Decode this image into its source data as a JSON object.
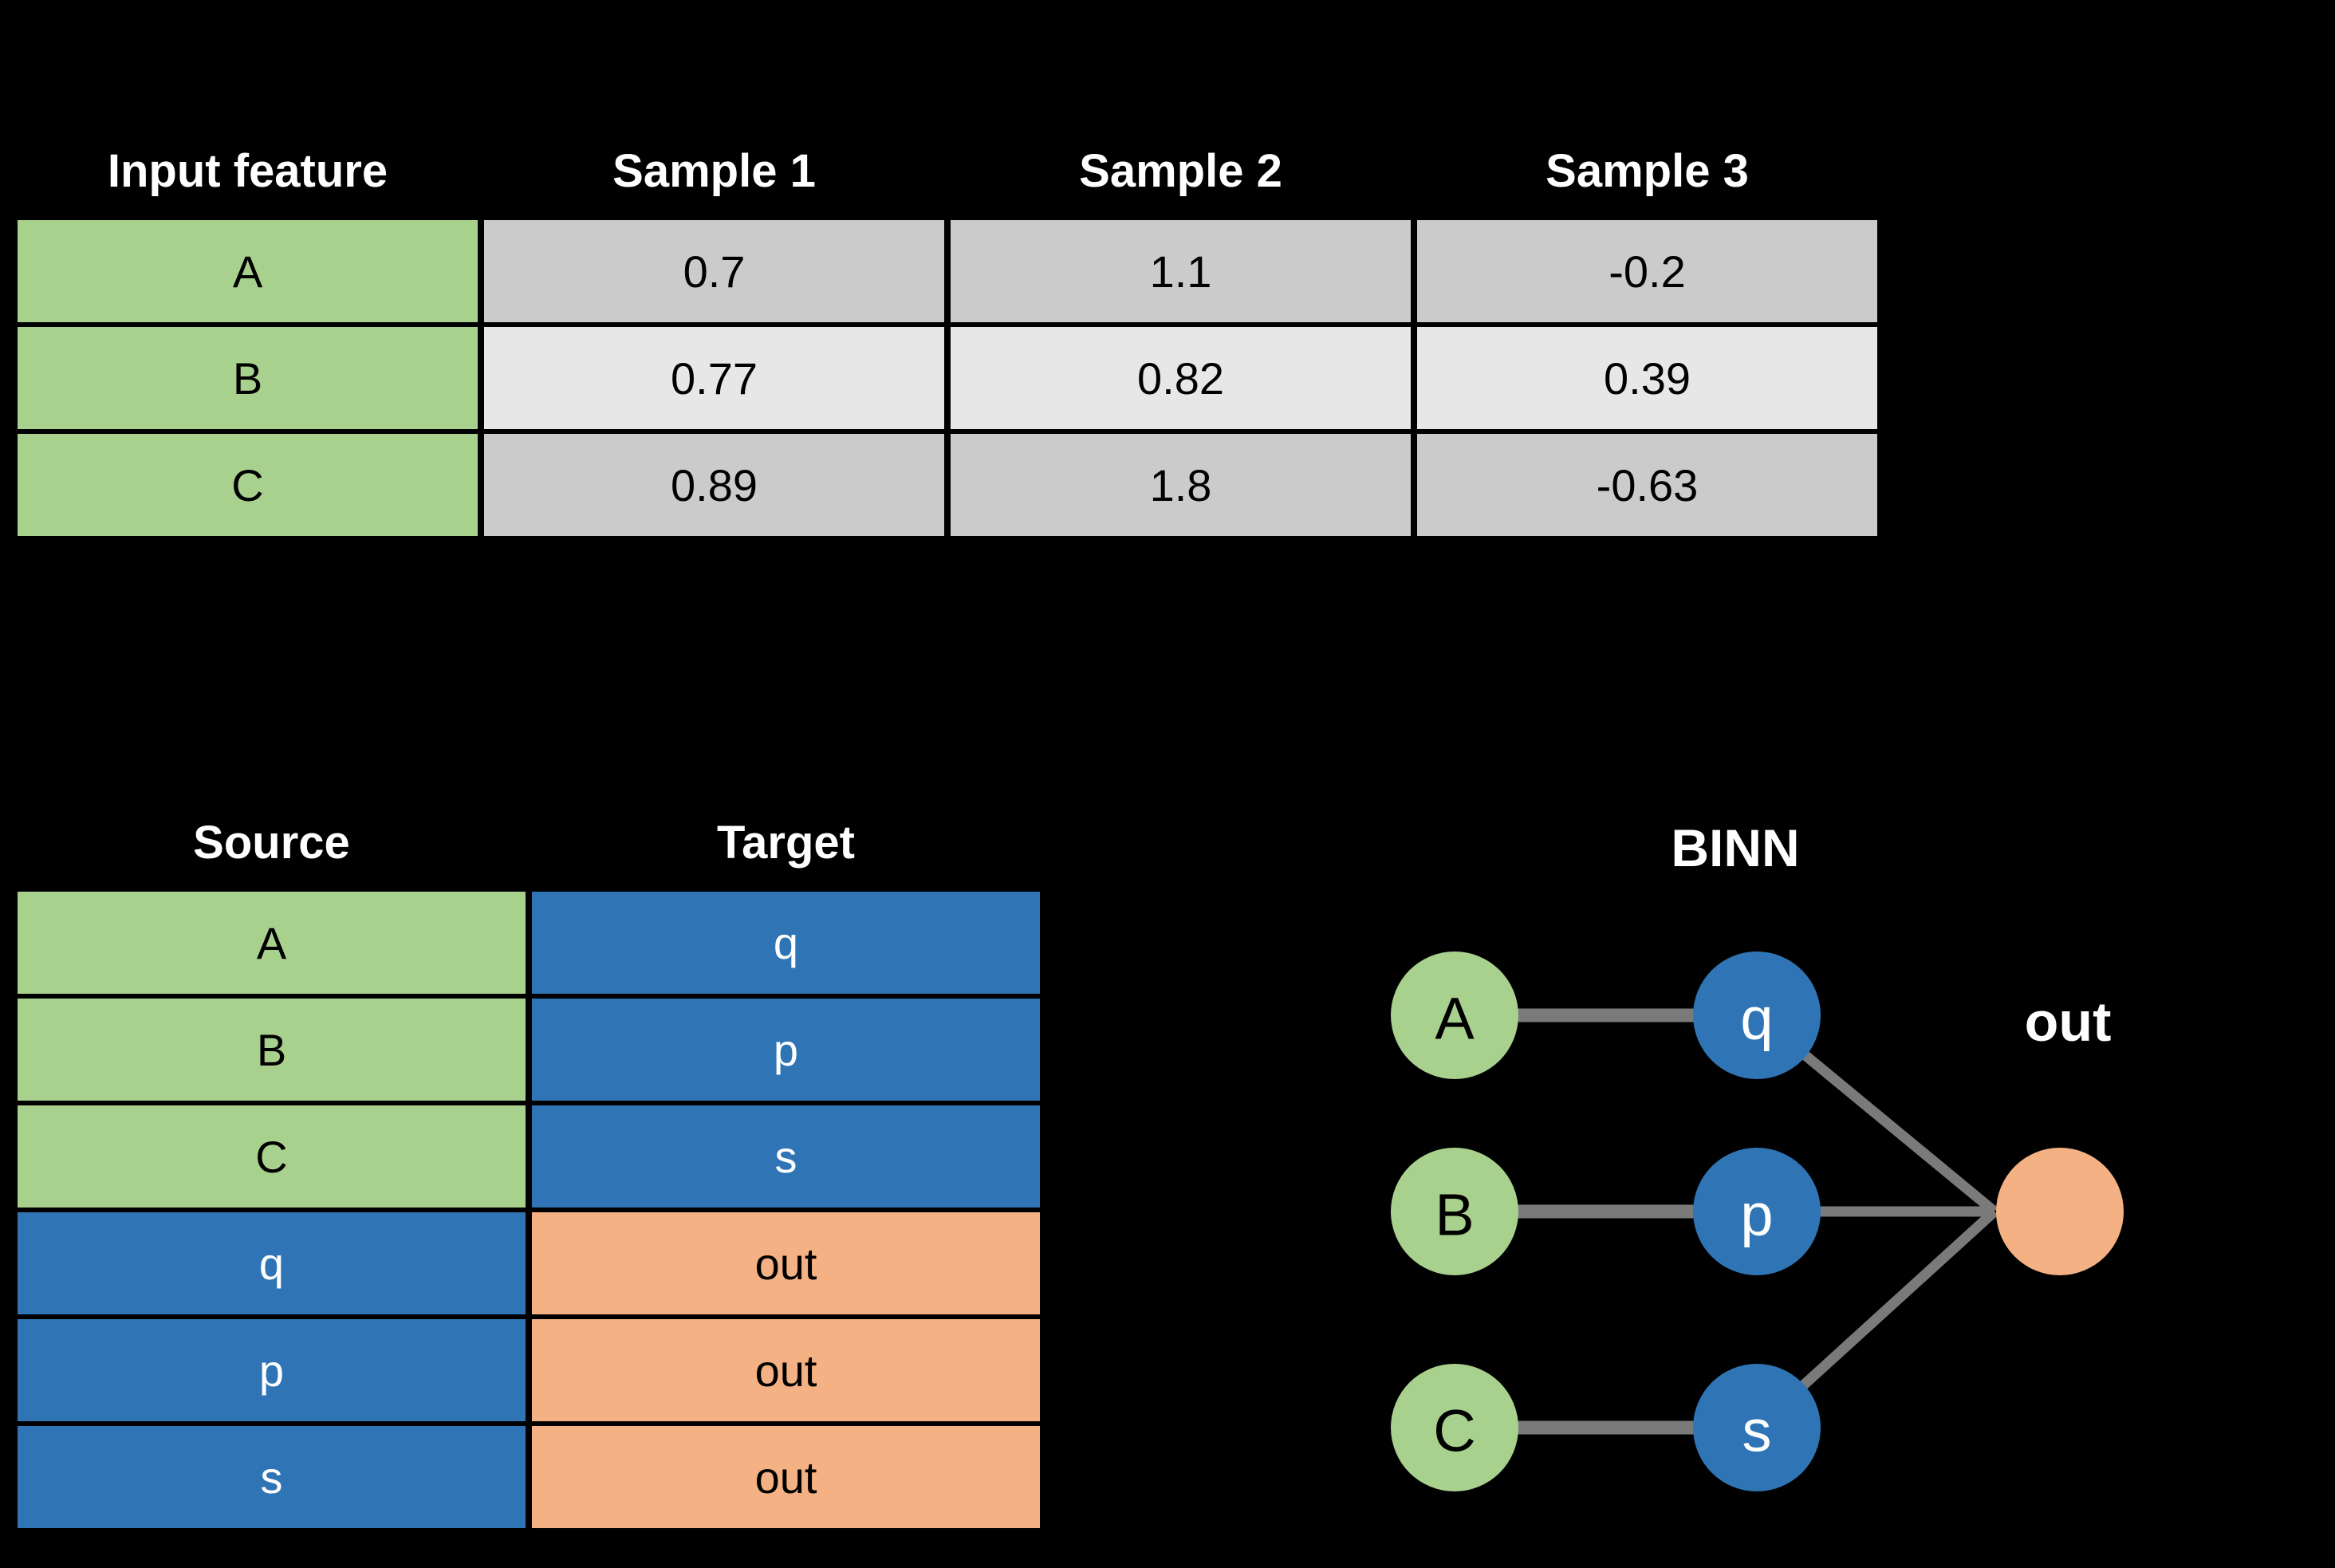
{
  "background_color": "#000000",
  "colors": {
    "input_green": "#a9d18e",
    "hidden_blue": "#2f75b5",
    "output_orange": "#f4b183",
    "cell_gray_dark": "#cbcbcb",
    "cell_gray_light": "#e7e7e7",
    "edge_gray": "#7a7a7a",
    "header_text": "#ffffff",
    "cell_text_dark": "#000000",
    "cell_text_light": "#ffffff"
  },
  "feature_table": {
    "headers": [
      "Input feature",
      "Sample 1",
      "Sample 2",
      "Sample 3"
    ],
    "rows": [
      {
        "feature": "A",
        "values": [
          "0.7",
          "1.1",
          "-0.2"
        ]
      },
      {
        "feature": "B",
        "values": [
          "0.77",
          "0.82",
          "0.39"
        ]
      },
      {
        "feature": "C",
        "values": [
          "0.89",
          "1.8",
          "-0.63"
        ]
      }
    ]
  },
  "mapping_table": {
    "headers": [
      "Source",
      "Target"
    ],
    "rows": [
      {
        "source": "A",
        "source_kind": "input",
        "target": "q",
        "target_kind": "hidden"
      },
      {
        "source": "B",
        "source_kind": "input",
        "target": "p",
        "target_kind": "hidden"
      },
      {
        "source": "C",
        "source_kind": "input",
        "target": "s",
        "target_kind": "hidden"
      },
      {
        "source": "q",
        "source_kind": "hidden",
        "target": "out",
        "target_kind": "output"
      },
      {
        "source": "p",
        "source_kind": "hidden",
        "target": "out",
        "target_kind": "output"
      },
      {
        "source": "s",
        "source_kind": "hidden",
        "target": "out",
        "target_kind": "output"
      }
    ]
  },
  "binn": {
    "title": "BINN",
    "out_label": "out",
    "nodes": [
      {
        "id": "A",
        "label": "A",
        "kind": "input",
        "col": 0,
        "row": 0
      },
      {
        "id": "q",
        "label": "q",
        "kind": "hidden",
        "col": 1,
        "row": 0
      },
      {
        "id": "B",
        "label": "B",
        "kind": "input",
        "col": 0,
        "row": 1
      },
      {
        "id": "p",
        "label": "p",
        "kind": "hidden",
        "col": 1,
        "row": 1
      },
      {
        "id": "C",
        "label": "C",
        "kind": "input",
        "col": 0,
        "row": 2
      },
      {
        "id": "s",
        "label": "s",
        "kind": "hidden",
        "col": 1,
        "row": 2
      },
      {
        "id": "out",
        "label": "",
        "kind": "output",
        "col": 2,
        "row": 1
      }
    ],
    "edges": [
      [
        "A",
        "q"
      ],
      [
        "B",
        "p"
      ],
      [
        "C",
        "s"
      ],
      [
        "q",
        "out"
      ],
      [
        "p",
        "out"
      ],
      [
        "s",
        "out"
      ]
    ]
  }
}
